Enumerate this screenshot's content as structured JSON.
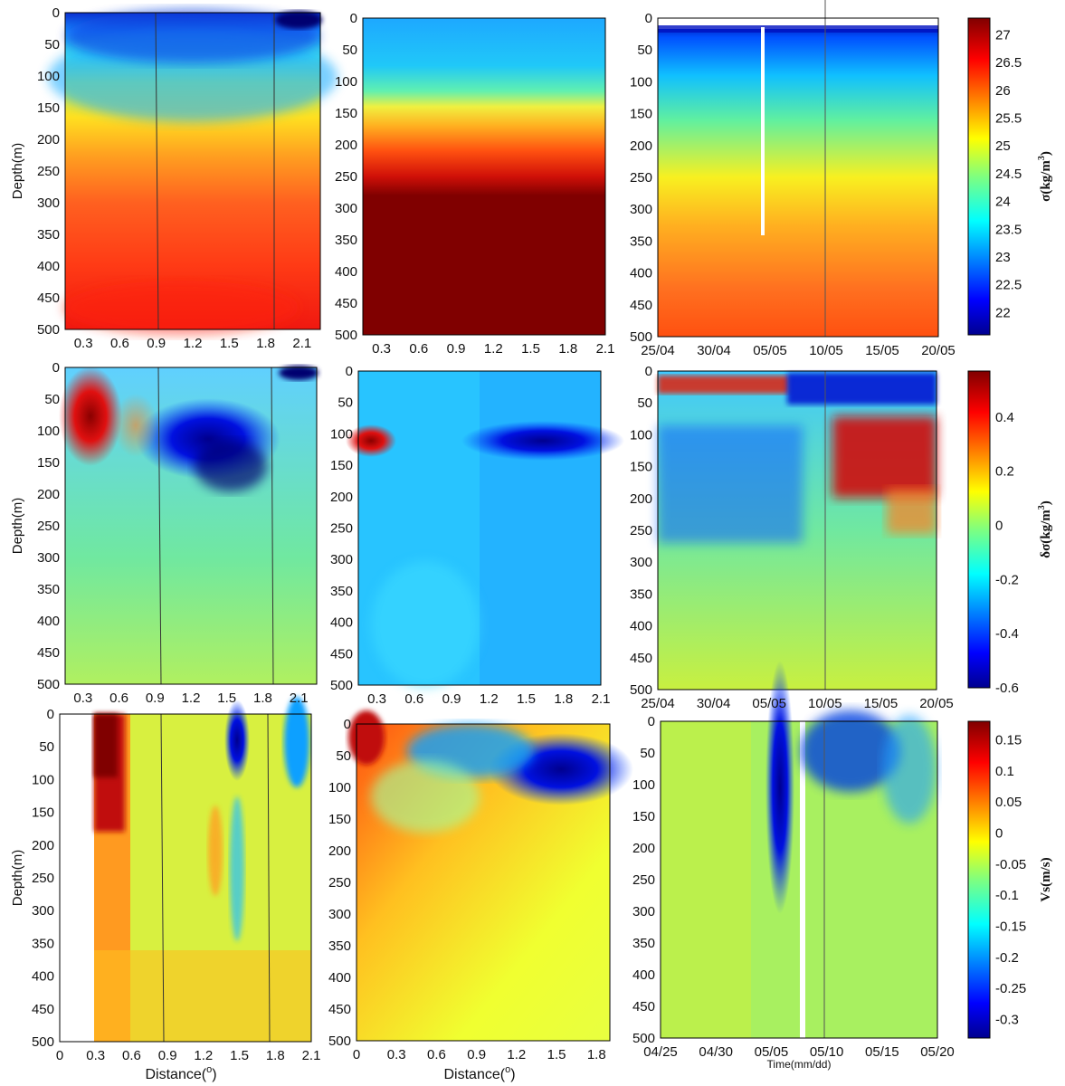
{
  "figure": {
    "ylabel": "Depth(m)",
    "xlabel_distance": "Distance(",
    "degree_symbol": "o",
    "close_paren": ")",
    "xlabel_time": "Time(mm/dd)",
    "depth_ticks": [
      "0",
      "50",
      "100",
      "150",
      "200",
      "250",
      "300",
      "350",
      "400",
      "450",
      "500"
    ]
  },
  "chart_data": [
    {
      "type": "heatmap",
      "row": 1,
      "col": 1,
      "variable": "sigma",
      "xlabel": "",
      "ylabel": "Depth(m)",
      "ylim": [
        500,
        0
      ],
      "x_ticks": [
        "0.3",
        "0.6",
        "0.9",
        "1.2",
        "1.5",
        "1.8",
        "2.1"
      ],
      "x_tick_values": [
        0.3,
        0.6,
        0.9,
        1.2,
        1.5,
        1.8,
        2.1
      ],
      "xlim": [
        0.15,
        2.25
      ]
    },
    {
      "type": "heatmap",
      "row": 1,
      "col": 2,
      "variable": "sigma",
      "xlabel": "",
      "ylim": [
        500,
        0
      ],
      "x_ticks": [
        "0.3",
        "0.6",
        "0.9",
        "1.2",
        "1.5",
        "1.8",
        "2.1"
      ],
      "x_tick_values": [
        0.3,
        0.6,
        0.9,
        1.2,
        1.5,
        1.8,
        2.1
      ],
      "xlim": [
        0.15,
        2.1
      ]
    },
    {
      "type": "heatmap",
      "row": 1,
      "col": 3,
      "variable": "sigma",
      "xlabel": "",
      "ylim": [
        500,
        0
      ],
      "x_ticks": [
        "25/04",
        "30/04",
        "05/05",
        "10/05",
        "15/05",
        "20/05"
      ],
      "x_tick_values": [
        0,
        5,
        10,
        15,
        20,
        25
      ],
      "xlim": [
        0,
        25
      ]
    },
    {
      "type": "heatmap",
      "row": 2,
      "col": 1,
      "variable": "delta_sigma",
      "ylabel": "Depth(m)",
      "ylim": [
        500,
        0
      ],
      "x_ticks": [
        "0.3",
        "0.6",
        "0.9",
        "1.2",
        "1.5",
        "1.8",
        "2.1"
      ],
      "x_tick_values": [
        0.3,
        0.6,
        0.9,
        1.2,
        1.5,
        1.8,
        2.1
      ],
      "xlim": [
        0.15,
        2.25
      ]
    },
    {
      "type": "heatmap",
      "row": 2,
      "col": 2,
      "variable": "delta_sigma",
      "ylim": [
        500,
        0
      ],
      "x_ticks": [
        "0.3",
        "0.6",
        "0.9",
        "1.2",
        "1.5",
        "1.8",
        "2.1"
      ],
      "x_tick_values": [
        0.3,
        0.6,
        0.9,
        1.2,
        1.5,
        1.8,
        2.1
      ],
      "xlim": [
        0.15,
        2.1
      ]
    },
    {
      "type": "heatmap",
      "row": 2,
      "col": 3,
      "variable": "delta_sigma",
      "ylim": [
        500,
        0
      ],
      "x_ticks": [
        "25/04",
        "30/04",
        "05/05",
        "10/05",
        "15/05",
        "20/05"
      ],
      "x_tick_values": [
        0,
        5,
        10,
        15,
        20,
        25
      ],
      "xlim": [
        0,
        25
      ]
    },
    {
      "type": "heatmap",
      "row": 3,
      "col": 1,
      "variable": "Vs",
      "xlabel": "Distance(o)",
      "ylabel": "Depth(m)",
      "ylim": [
        500,
        0
      ],
      "x_ticks": [
        "0",
        "0.3",
        "0.6",
        "0.9",
        "1.2",
        "1.5",
        "1.8",
        "2.1"
      ],
      "x_tick_values": [
        0,
        0.3,
        0.6,
        0.9,
        1.2,
        1.5,
        1.8,
        2.1
      ],
      "xlim": [
        0,
        2.1
      ]
    },
    {
      "type": "heatmap",
      "row": 3,
      "col": 2,
      "variable": "Vs",
      "xlabel": "Distance(o)",
      "ylim": [
        500,
        0
      ],
      "x_ticks": [
        "0",
        "0.3",
        "0.6",
        "0.9",
        "1.2",
        "1.5",
        "1.8"
      ],
      "x_tick_values": [
        0,
        0.3,
        0.6,
        0.9,
        1.2,
        1.5,
        1.8
      ],
      "xlim": [
        0,
        1.9
      ]
    },
    {
      "type": "heatmap",
      "row": 3,
      "col": 3,
      "variable": "Vs",
      "xlabel": "Time(mm/dd)",
      "ylim": [
        500,
        0
      ],
      "x_ticks": [
        "04/25",
        "04/30",
        "05/05",
        "05/10",
        "05/15",
        "05/20"
      ],
      "x_tick_values": [
        0,
        5,
        10,
        15,
        20,
        25
      ],
      "xlim": [
        0,
        25
      ]
    }
  ],
  "colorbars": [
    {
      "row": 1,
      "label": "σ(kg/m",
      "label_sup": "3",
      "label_close": ")",
      "range": [
        21.6,
        27.3
      ],
      "ticks": [
        "22",
        "22.5",
        "23",
        "23.5",
        "24",
        "24.5",
        "25",
        "25.5",
        "26",
        "26.5",
        "27"
      ],
      "tick_values": [
        22,
        22.5,
        23,
        23.5,
        24,
        24.5,
        25,
        25.5,
        26,
        26.5,
        27
      ]
    },
    {
      "row": 2,
      "label": "δσ(kg/m",
      "label_sup": "3",
      "label_close": ")",
      "range": [
        -0.6,
        0.57
      ],
      "ticks": [
        "-0.6",
        "-0.4",
        "-0.2",
        "0",
        "0.2",
        "0.4"
      ],
      "tick_values": [
        -0.6,
        -0.4,
        -0.2,
        0,
        0.2,
        0.4
      ]
    },
    {
      "row": 3,
      "label": "Vs(m/s)",
      "label_sup": "",
      "label_close": "",
      "range": [
        -0.33,
        0.18
      ],
      "ticks": [
        "-0.3",
        "-0.25",
        "-0.2",
        "-0.15",
        "-0.1",
        "-0.05",
        "0",
        "0.05",
        "0.1",
        "0.15"
      ],
      "tick_values": [
        -0.3,
        -0.25,
        -0.2,
        -0.15,
        -0.1,
        -0.05,
        0,
        0.05,
        0.1,
        0.15
      ]
    }
  ]
}
